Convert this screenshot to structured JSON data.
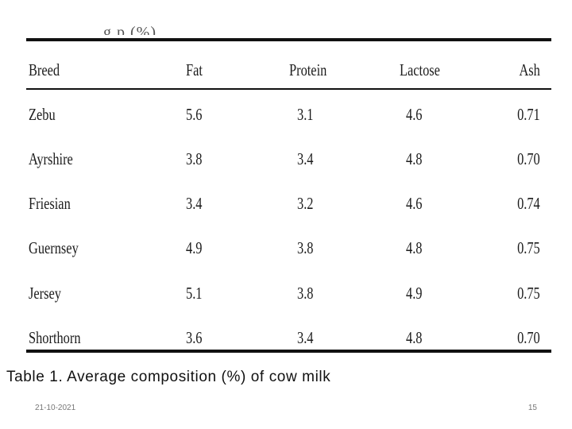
{
  "table_heading_fragment": "g p (%)",
  "table": {
    "columns": [
      "Breed",
      "Fat",
      "Protein",
      "Lactose",
      "Ash"
    ],
    "rows": [
      [
        "Zebu",
        "5.6",
        "3.1",
        "4.6",
        "0.71"
      ],
      [
        "Ayrshire",
        "3.8",
        "3.4",
        "4.8",
        "0.70"
      ],
      [
        "Friesian",
        "3.4",
        "3.2",
        "4.6",
        "0.74"
      ],
      [
        "Guernsey",
        "4.9",
        "3.8",
        "4.8",
        "0.75"
      ],
      [
        "Jersey",
        "5.1",
        "3.8",
        "4.9",
        "0.75"
      ],
      [
        "Shorthorn",
        "3.6",
        "3.4",
        "4.8",
        "0.70"
      ]
    ]
  },
  "caption": "Table 1. Average composition (%) of cow milk",
  "footer": {
    "date": "21-10-2021",
    "page_number": "15"
  }
}
